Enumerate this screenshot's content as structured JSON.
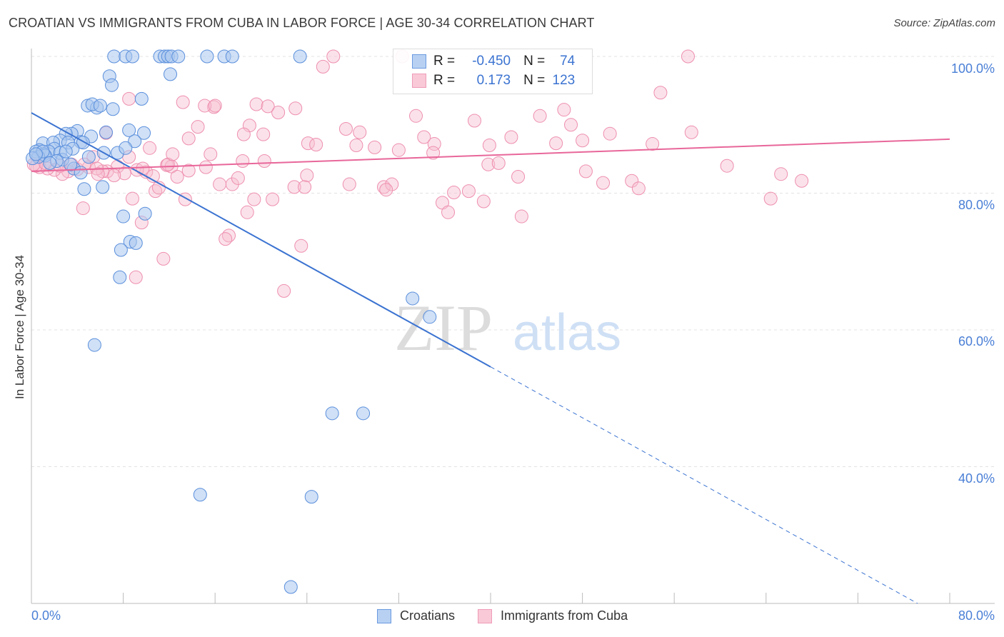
{
  "title": "CROATIAN VS IMMIGRANTS FROM CUBA IN LABOR FORCE | AGE 30-34 CORRELATION CHART",
  "source": "Source: ZipAtlas.com",
  "watermark": {
    "zip": "ZIP",
    "atlas": "atlas"
  },
  "legend": {
    "croatians": {
      "r_label": "R =",
      "r": "-0.450",
      "n_label": "N =",
      "n": "74"
    },
    "cuba": {
      "r_label": "R =",
      "r": "0.173",
      "n_label": "N =",
      "n": "123"
    }
  },
  "colors": {
    "blue": "#3b73d1",
    "blue_fill": "#a9c6ef",
    "pink": "#e8679a",
    "pink_fill": "#f7bfd0"
  },
  "chart_data": {
    "type": "scatter",
    "title": "CROATIAN VS IMMIGRANTS FROM CUBA IN LABOR FORCE | AGE 30-34 CORRELATION CHART",
    "xlabel": "",
    "ylabel": "In Labor Force | Age 30-34",
    "xlim": [
      0,
      80
    ],
    "ylim": [
      20,
      100
    ],
    "x_tick_labels": [
      "0.0%",
      "80.0%"
    ],
    "y_ticks": [
      100,
      80,
      60,
      40
    ],
    "y_tick_labels": [
      "100.0%",
      "80.0%",
      "60.0%",
      "40.0%"
    ],
    "grid": true,
    "legend_position": "bottom",
    "series": [
      {
        "name": "Croatians",
        "trend": {
          "x0": 0,
          "y0": 91.75,
          "x1": 40,
          "y1": 54.6,
          "dashed_to": [
            77.2,
            20
          ]
        },
        "points": [
          [
            7.2,
            100
          ],
          [
            8.2,
            100
          ],
          [
            8.8,
            100
          ],
          [
            11.2,
            100
          ],
          [
            11.6,
            100
          ],
          [
            11.9,
            100
          ],
          [
            12.2,
            100
          ],
          [
            12.8,
            100
          ],
          [
            15.3,
            100
          ],
          [
            16.8,
            100
          ],
          [
            17.5,
            100
          ],
          [
            23.4,
            100
          ],
          [
            6.8,
            97.1
          ],
          [
            12.1,
            97.4
          ],
          [
            7.0,
            95.8
          ],
          [
            9.6,
            93.8
          ],
          [
            4.9,
            92.8
          ],
          [
            5.7,
            92.5
          ],
          [
            5.3,
            93.0
          ],
          [
            6.0,
            92.8
          ],
          [
            7.1,
            92.3
          ],
          [
            4.0,
            89.1
          ],
          [
            3.5,
            88.7
          ],
          [
            3.0,
            88.7
          ],
          [
            5.2,
            88.3
          ],
          [
            8.5,
            89.2
          ],
          [
            9.8,
            88.8
          ],
          [
            6.5,
            88.9
          ],
          [
            9.0,
            87.6
          ],
          [
            2.5,
            87.7
          ],
          [
            3.2,
            87.4
          ],
          [
            1.0,
            87.3
          ],
          [
            1.9,
            87.4
          ],
          [
            4.3,
            87.5
          ],
          [
            4.5,
            87.4
          ],
          [
            2.0,
            86.5
          ],
          [
            3.6,
            86.5
          ],
          [
            0.7,
            86.3
          ],
          [
            0.4,
            86.1
          ],
          [
            1.5,
            86.1
          ],
          [
            2.5,
            85.9
          ],
          [
            1.1,
            85.7
          ],
          [
            5.0,
            85.3
          ],
          [
            6.3,
            85.9
          ],
          [
            7.5,
            85.9
          ],
          [
            8.2,
            86.6
          ],
          [
            2.7,
            84.9
          ],
          [
            3.7,
            83.6
          ],
          [
            2.2,
            84.7
          ],
          [
            3.4,
            84.2
          ],
          [
            4.3,
            83.0
          ],
          [
            4.6,
            80.6
          ],
          [
            6.2,
            80.9
          ],
          [
            8.0,
            76.6
          ],
          [
            9.9,
            77.0
          ],
          [
            8.6,
            72.9
          ],
          [
            9.1,
            72.7
          ],
          [
            7.8,
            71.7
          ],
          [
            7.7,
            67.7
          ],
          [
            33.2,
            64.6
          ],
          [
            34.7,
            61.9
          ],
          [
            5.5,
            57.8
          ],
          [
            26.2,
            47.8
          ],
          [
            28.9,
            47.8
          ],
          [
            14.7,
            35.9
          ],
          [
            24.4,
            35.6
          ],
          [
            22.6,
            22.4
          ],
          [
            1.2,
            85.5
          ],
          [
            1.6,
            84.4
          ],
          [
            0.6,
            85.3
          ],
          [
            0.1,
            85.1
          ],
          [
            3.0,
            86.1
          ],
          [
            1.0,
            86.1
          ],
          [
            0.4,
            85.7
          ]
        ]
      },
      {
        "name": "Immigrants from Cuba",
        "trend": {
          "x0": 0,
          "y0": 83.2,
          "x1": 80,
          "y1": 87.9
        },
        "points": [
          [
            26.3,
            100
          ],
          [
            32.3,
            100
          ],
          [
            57.2,
            100
          ],
          [
            25.4,
            98.5
          ],
          [
            8.5,
            93.8
          ],
          [
            13.2,
            93.3
          ],
          [
            54.8,
            94.7
          ],
          [
            15.9,
            92.6
          ],
          [
            15.1,
            92.8
          ],
          [
            16.0,
            92.8
          ],
          [
            19.6,
            93.0
          ],
          [
            21.5,
            91.8
          ],
          [
            23.0,
            92.4
          ],
          [
            20.6,
            92.7
          ],
          [
            33.5,
            91.3
          ],
          [
            38.6,
            90.6
          ],
          [
            44.3,
            91.3
          ],
          [
            46.4,
            92.2
          ],
          [
            47.0,
            90.0
          ],
          [
            19.0,
            89.9
          ],
          [
            14.5,
            89.7
          ],
          [
            20.2,
            88.6
          ],
          [
            18.5,
            88.6
          ],
          [
            27.4,
            89.4
          ],
          [
            28.6,
            88.9
          ],
          [
            24.1,
            87.3
          ],
          [
            24.8,
            87.1
          ],
          [
            28.3,
            87.0
          ],
          [
            29.9,
            86.7
          ],
          [
            32.0,
            86.3
          ],
          [
            34.2,
            88.2
          ],
          [
            35.1,
            87.2
          ],
          [
            35.0,
            85.9
          ],
          [
            41.8,
            88.2
          ],
          [
            39.9,
            87.0
          ],
          [
            45.7,
            87.3
          ],
          [
            48.0,
            87.7
          ],
          [
            50.4,
            88.7
          ],
          [
            57.5,
            88.9
          ],
          [
            54.1,
            87.2
          ],
          [
            6.5,
            88.8
          ],
          [
            5.4,
            85.3
          ],
          [
            13.7,
            88.0
          ],
          [
            10.3,
            86.6
          ],
          [
            15.6,
            85.7
          ],
          [
            15.2,
            83.8
          ],
          [
            20.3,
            84.7
          ],
          [
            18.4,
            84.7
          ],
          [
            11.8,
            84.1
          ],
          [
            12.2,
            83.9
          ],
          [
            11.9,
            84.2
          ],
          [
            13.7,
            83.3
          ],
          [
            8.5,
            85.3
          ],
          [
            7.5,
            83.9
          ],
          [
            6.6,
            83.2
          ],
          [
            10.0,
            83.1
          ],
          [
            9.2,
            83.4
          ],
          [
            8.1,
            82.9
          ],
          [
            7.2,
            82.6
          ],
          [
            6.2,
            83.2
          ],
          [
            5.0,
            83.8
          ],
          [
            4.0,
            83.5
          ],
          [
            3.2,
            83.2
          ],
          [
            2.7,
            82.8
          ],
          [
            2.0,
            83.4
          ],
          [
            1.4,
            83.6
          ],
          [
            0.7,
            83.8
          ],
          [
            0.4,
            84.0
          ],
          [
            1.2,
            84.4
          ],
          [
            2.5,
            84.0
          ],
          [
            3.5,
            84.2
          ],
          [
            4.6,
            84.2
          ],
          [
            5.7,
            83.6
          ],
          [
            10.6,
            82.5
          ],
          [
            12.7,
            82.4
          ],
          [
            16.4,
            81.3
          ],
          [
            17.5,
            81.3
          ],
          [
            18.0,
            82.2
          ],
          [
            24.0,
            82.6
          ],
          [
            22.9,
            80.9
          ],
          [
            23.8,
            80.9
          ],
          [
            27.7,
            81.3
          ],
          [
            30.7,
            80.9
          ],
          [
            31.4,
            81.3
          ],
          [
            30.9,
            80.5
          ],
          [
            39.8,
            84.2
          ],
          [
            40.7,
            84.4
          ],
          [
            42.4,
            82.4
          ],
          [
            48.3,
            83.2
          ],
          [
            49.8,
            81.5
          ],
          [
            52.3,
            81.8
          ],
          [
            52.9,
            80.7
          ],
          [
            60.6,
            84.0
          ],
          [
            65.3,
            82.8
          ],
          [
            67.1,
            81.8
          ],
          [
            64.4,
            79.2
          ],
          [
            35.8,
            78.6
          ],
          [
            36.8,
            80.1
          ],
          [
            38.1,
            80.3
          ],
          [
            39.4,
            78.8
          ],
          [
            36.3,
            77.2
          ],
          [
            42.7,
            76.6
          ],
          [
            19.4,
            79.1
          ],
          [
            21.0,
            79.1
          ],
          [
            18.8,
            77.2
          ],
          [
            13.4,
            79.1
          ],
          [
            8.8,
            79.2
          ],
          [
            10.8,
            80.3
          ],
          [
            11.1,
            80.8
          ],
          [
            4.5,
            77.8
          ],
          [
            9.6,
            75.7
          ],
          [
            17.2,
            73.8
          ],
          [
            16.9,
            73.3
          ],
          [
            23.5,
            72.3
          ],
          [
            11.5,
            70.4
          ],
          [
            9.1,
            67.7
          ],
          [
            22.0,
            65.7
          ],
          [
            0.2,
            84.2
          ],
          [
            5.8,
            82.8
          ],
          [
            12.3,
            85.7
          ],
          [
            9.7,
            83.6
          ]
        ]
      }
    ]
  }
}
